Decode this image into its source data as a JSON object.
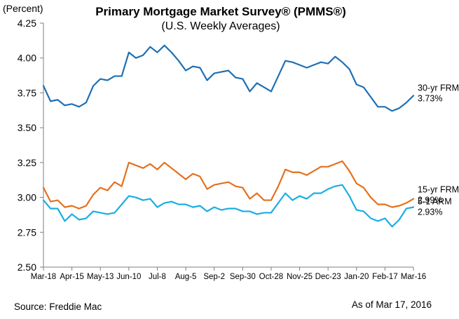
{
  "chart_data": {
    "type": "line",
    "title": "Primary Mortgage Market Survey® (PMMS®)",
    "subtitle": "(U.S. Weekly Averages)",
    "ylabel": "(Percent)",
    "ylim": [
      2.5,
      4.25
    ],
    "yticks": [
      "2.50",
      "2.75",
      "3.00",
      "3.25",
      "3.50",
      "3.75",
      "4.00",
      "4.25"
    ],
    "grid": false,
    "x_tick_labels": [
      "Mar-18",
      "Apr-15",
      "May-13",
      "Jun-10",
      "Jul-8",
      "Aug-5",
      "Sep-2",
      "Sep-30",
      "Oct-28",
      "Nov-25",
      "Dec-23",
      "Jan-20",
      "Feb-17",
      "Mar-16"
    ],
    "x_tick_every": 4,
    "series": [
      {
        "name": "30-yr FRM",
        "value_label": "3.73%",
        "color": "#1f6fb4",
        "values": [
          3.8,
          3.69,
          3.7,
          3.66,
          3.67,
          3.65,
          3.68,
          3.8,
          3.85,
          3.84,
          3.87,
          3.87,
          4.04,
          4.0,
          4.02,
          4.08,
          4.04,
          4.09,
          4.04,
          3.98,
          3.91,
          3.94,
          3.93,
          3.84,
          3.89,
          3.9,
          3.91,
          3.86,
          3.85,
          3.76,
          3.82,
          3.79,
          3.76,
          3.87,
          3.98,
          3.97,
          3.95,
          3.93,
          3.95,
          3.97,
          3.96,
          4.01,
          3.97,
          3.92,
          3.81,
          3.79,
          3.72,
          3.65,
          3.65,
          3.62,
          3.64,
          3.68,
          3.73
        ]
      },
      {
        "name": "15-yr FRM",
        "value_label": "2.99%",
        "color": "#e5701e",
        "values": [
          3.07,
          2.97,
          2.98,
          2.93,
          2.94,
          2.92,
          2.94,
          3.02,
          3.07,
          3.05,
          3.11,
          3.08,
          3.25,
          3.23,
          3.21,
          3.24,
          3.2,
          3.25,
          3.21,
          3.17,
          3.13,
          3.17,
          3.15,
          3.06,
          3.09,
          3.1,
          3.11,
          3.08,
          3.07,
          2.99,
          3.03,
          2.98,
          2.98,
          3.08,
          3.2,
          3.18,
          3.18,
          3.16,
          3.19,
          3.22,
          3.22,
          3.24,
          3.26,
          3.19,
          3.1,
          3.07,
          3.0,
          2.95,
          2.95,
          2.93,
          2.94,
          2.96,
          2.99
        ]
      },
      {
        "name": "5-1 ARM",
        "value_label": "2.93%",
        "color": "#1aaee3",
        "values": [
          2.98,
          2.92,
          2.92,
          2.83,
          2.88,
          2.84,
          2.85,
          2.9,
          2.89,
          2.88,
          2.89,
          2.95,
          3.01,
          3.0,
          2.98,
          2.99,
          2.93,
          2.96,
          2.97,
          2.95,
          2.95,
          2.93,
          2.94,
          2.9,
          2.93,
          2.91,
          2.92,
          2.92,
          2.9,
          2.9,
          2.88,
          2.89,
          2.89,
          2.96,
          3.03,
          2.98,
          3.01,
          2.99,
          3.03,
          3.03,
          3.06,
          3.08,
          3.09,
          3.01,
          2.91,
          2.9,
          2.85,
          2.83,
          2.85,
          2.79,
          2.84,
          2.92,
          2.93
        ]
      }
    ]
  },
  "footer": {
    "source": "Source: Freddie Mac",
    "as_of": "As of Mar 17, 2016"
  }
}
